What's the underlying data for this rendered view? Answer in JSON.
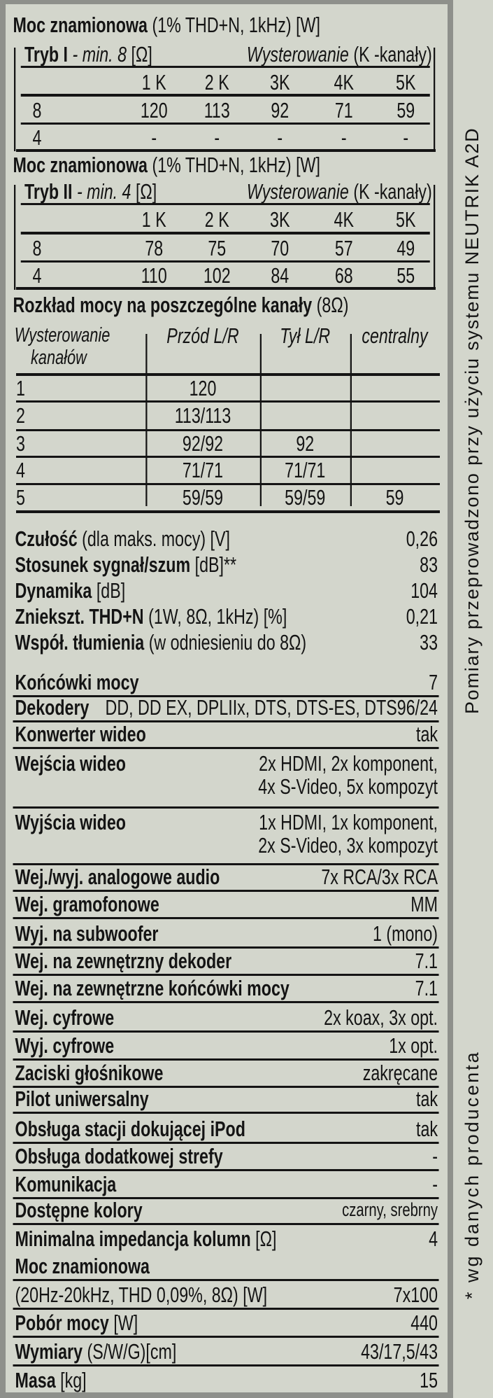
{
  "power_tables": [
    {
      "title_bold": "Moc znamionowa",
      "title_normal": "(1% THD+N, 1kHz) [W]",
      "mode_label": "Tryb I",
      "mode_note": "- min. 8",
      "mode_unit": "[Ω]",
      "drive_label": "Wysterowanie",
      "drive_unit": "(K -kanały)",
      "columns": [
        "1 K",
        "2 K",
        "3K",
        "4K",
        "5K"
      ],
      "rows": [
        {
          "load": "8",
          "values": [
            "120",
            "113",
            "92",
            "71",
            "59"
          ]
        },
        {
          "load": "4",
          "values": [
            "-",
            "-",
            "-",
            "-",
            "-"
          ]
        }
      ]
    },
    {
      "title_bold": "Moc znamionowa",
      "title_normal": "(1% THD+N, 1kHz) [W]",
      "mode_label": "Tryb II",
      "mode_note": "- min. 4",
      "mode_unit": "[Ω]",
      "drive_label": "Wysterowanie",
      "drive_unit": "(K -kanały)",
      "columns": [
        "1 K",
        "2 K",
        "3K",
        "4K",
        "5K"
      ],
      "rows": [
        {
          "load": "8",
          "values": [
            "78",
            "75",
            "70",
            "57",
            "49"
          ]
        },
        {
          "load": "4",
          "values": [
            "110",
            "102",
            "84",
            "68",
            "55"
          ]
        }
      ]
    }
  ],
  "distribution": {
    "title_bold": "Rozkład mocy na poszczególne kanały",
    "title_normal": "(8Ω)",
    "headers": [
      "Wysterowanie",
      "kanałów",
      "Przód L/R",
      "Tył L/R",
      "centralny"
    ],
    "rows": [
      {
        "channels": "1",
        "front": "120",
        "rear": "",
        "center": ""
      },
      {
        "channels": "2",
        "front": "113/113",
        "rear": "",
        "center": ""
      },
      {
        "channels": "3",
        "front": "92/92",
        "rear": "92",
        "center": ""
      },
      {
        "channels": "4",
        "front": "71/71",
        "rear": "71/71",
        "center": ""
      },
      {
        "channels": "5",
        "front": "59/59",
        "rear": "59/59",
        "center": "59"
      }
    ]
  },
  "measurements": [
    {
      "label": "Czułość",
      "detail": "(dla maks. mocy) [V]",
      "value": "0,26"
    },
    {
      "label": "Stosunek sygnał/szum",
      "detail": "[dB]**",
      "value": "83"
    },
    {
      "label": "Dynamika",
      "detail": "[dB]",
      "value": "104"
    },
    {
      "label": "Zniekszt. THD+N",
      "detail": "(1W, 8Ω, 1kHz) [%]",
      "value": "0,21"
    },
    {
      "label": "Współ. tłumienia",
      "detail": "(w odniesieniu do 8Ω)",
      "value": "33"
    }
  ],
  "features": [
    {
      "label": "Końcówki mocy",
      "detail": "",
      "value": "7"
    },
    {
      "label": "Dekodery",
      "detail": "",
      "value": "DD, DD EX, DPLIIx, DTS, DTS-ES, DTS96/24"
    },
    {
      "label": "Konwerter wideo",
      "detail": "",
      "value": "tak"
    },
    {
      "label": "Wejścia wideo",
      "detail": "",
      "value": "2x HDMI, 2x komponent,",
      "value2": "4x S-Video, 5x kompozyt"
    },
    {
      "label": "Wyjścia wideo",
      "detail": "",
      "value": "1x HDMI, 1x komponent,",
      "value2": "2x S-Video, 3x kompozyt"
    },
    {
      "label": "Wej./wyj. analogowe audio",
      "detail": "",
      "value": "7x RCA/3x RCA"
    },
    {
      "label": "Wej. gramofonowe",
      "detail": "",
      "value": "MM"
    },
    {
      "label": "Wyj. na subwoofer",
      "detail": "",
      "value": "1 (mono)"
    },
    {
      "label": "Wej. na zewnętrzny dekoder",
      "detail": "",
      "value": "7.1"
    },
    {
      "label": "Wej. na zewnętrzne końcówki mocy",
      "detail": "",
      "value": "7.1"
    },
    {
      "label": "Wej. cyfrowe",
      "detail": "",
      "value": "2x koax, 3x opt."
    },
    {
      "label": "Wyj. cyfrowe",
      "detail": "",
      "value": "1x opt."
    },
    {
      "label": "Zaciski głośnikowe",
      "detail": "",
      "value": "zakręcane"
    },
    {
      "label": "Pilot uniwersalny",
      "detail": "",
      "value": "tak"
    },
    {
      "label": "Obsługa stacji dokującej iPod",
      "detail": "",
      "value": "tak"
    },
    {
      "label": "Obsługa dodatkowej strefy",
      "detail": "",
      "value": "-"
    },
    {
      "label": "Komunikacja",
      "detail": "",
      "value": "-"
    },
    {
      "label": "Dostępne kolory",
      "detail": "",
      "value": "czarny, srebrny"
    },
    {
      "label": "Minimalna impedancja kolumn",
      "detail": "[Ω]",
      "value": "4"
    },
    {
      "label": "Moc znamionowa",
      "detail": "",
      "value": ""
    },
    {
      "label": "",
      "detail": "(20Hz-20kHz, THD 0,09%, 8Ω) [W]",
      "value": "7x100"
    },
    {
      "label": "Pobór mocy",
      "detail": "[W]",
      "value": "440"
    },
    {
      "label": "Wymiary",
      "detail": "(S/W/G)[cm]",
      "value": "43/17,5/43"
    },
    {
      "label": "Masa",
      "detail": "[kg]",
      "value": "15"
    }
  ],
  "side_note": "Pomiary przeprowadzono przy użyciu systemu NEUTRIK A2D",
  "footnote": "* wg danych producenta",
  "colors": {
    "background": "#d3d6cc",
    "border": "#8e908b",
    "text": "#141414"
  }
}
